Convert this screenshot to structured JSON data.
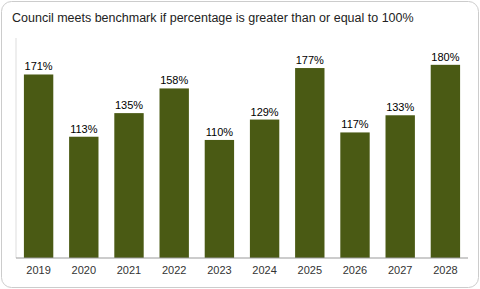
{
  "chart_data": {
    "type": "bar",
    "title": "Council meets benchmark if percentage is greater than or equal to 100%",
    "categories": [
      "2019",
      "2020",
      "2021",
      "2022",
      "2023",
      "2024",
      "2025",
      "2026",
      "2027",
      "2028"
    ],
    "values": [
      171,
      113,
      135,
      158,
      110,
      129,
      177,
      117,
      133,
      180
    ],
    "value_labels": [
      "171%",
      "113%",
      "135%",
      "158%",
      "110%",
      "129%",
      "177%",
      "117%",
      "133%",
      "180%"
    ],
    "color": "#4a5a14",
    "ylim": [
      0,
      205
    ],
    "data_labels": true,
    "tick_labels": "x",
    "grid": false
  }
}
